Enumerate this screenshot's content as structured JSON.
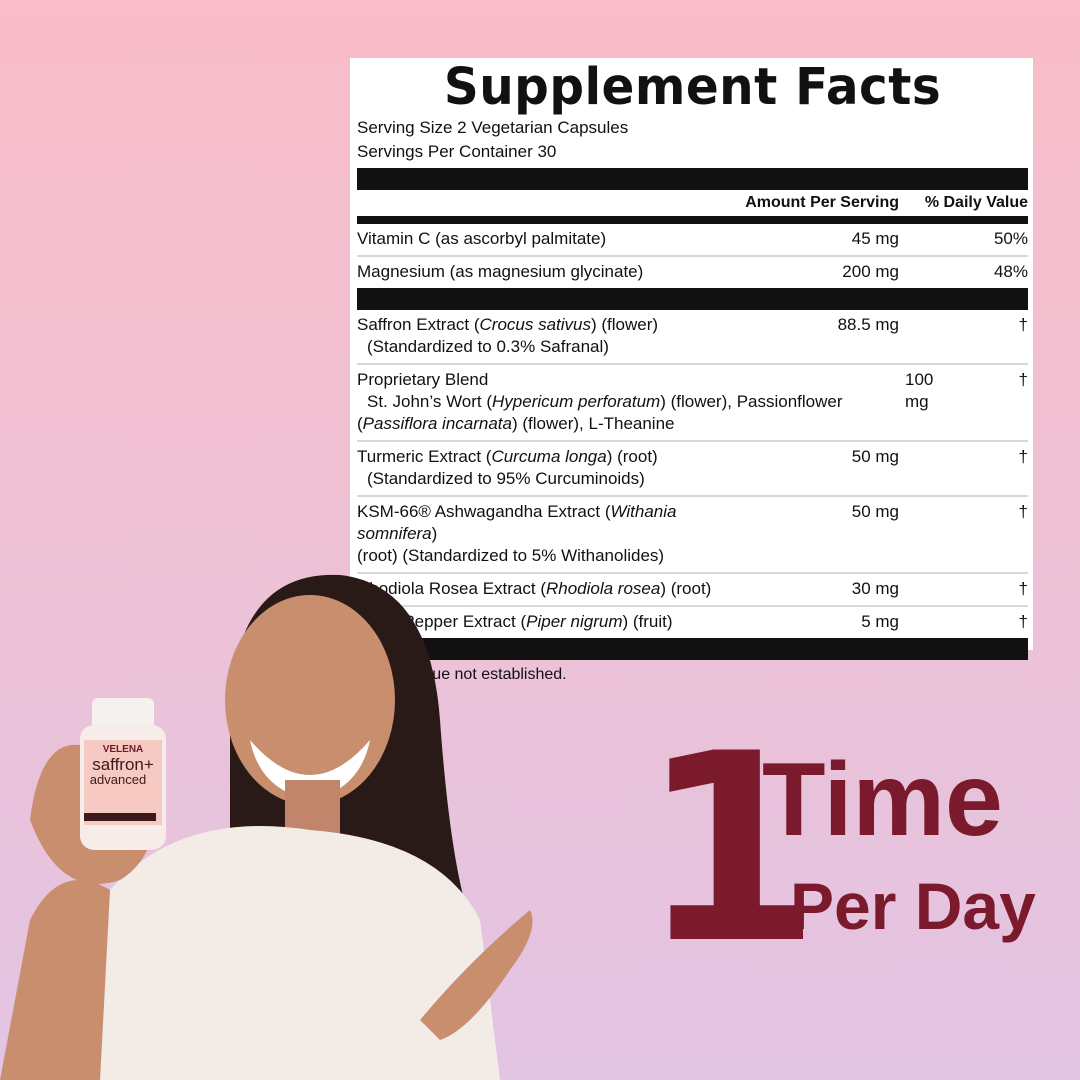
{
  "label": {
    "title": "Supplement Facts",
    "serving_size": "Serving Size 2 Vegetarian Capsules",
    "servings_per_container": "Servings Per Container 30",
    "col_amount": "Amount Per Serving",
    "col_dv": "% Daily Value",
    "vitamins": [
      {
        "name": "Vitamin C (as ascorbyl palmitate)",
        "amount": "45 mg",
        "dv": "50%"
      },
      {
        "name": "Magnesium (as magnesium glycinate)",
        "amount": "200 mg",
        "dv": "48%"
      }
    ],
    "ingredients": [
      {
        "a": "Saffron Extract (",
        "b": "Crocus sativus",
        "c": ") (flower)",
        "sub": "(Standardized to 0.3% Safranal)",
        "amount": "88.5 mg",
        "dv": "†"
      },
      {
        "a": "Proprietary Blend",
        "amount": "100 mg",
        "dv": "†",
        "sub1a": "St. John’s Wort (",
        "sub1b": "Hypericum perforatum",
        "sub1c": ") (flower), Passionflower",
        "sub2a": "(",
        "sub2b": "Passiflora incarnata",
        "sub2c": ") (flower), L-Theanine"
      },
      {
        "a": "Turmeric Extract (",
        "b": "Curcuma longa",
        "c": ") (root)",
        "sub": "(Standardized to 95% Curcuminoids)",
        "amount": "50 mg",
        "dv": "†"
      },
      {
        "a": "KSM-66® Ashwagandha Extract (",
        "b": "Withania somnifera",
        "c": ")",
        "sub": "(root) (Standardized to 5% Withanolides)",
        "amount": "50 mg",
        "dv": "†"
      },
      {
        "a": "Rhodiola Rosea Extract (",
        "b": "Rhodiola rosea",
        "c": ") (root)",
        "amount": "30 mg",
        "dv": "†"
      },
      {
        "a": "Black Pepper Extract (",
        "b": "Piper nigrum",
        "c": ") (fruit)",
        "amount": "5 mg",
        "dv": "†"
      }
    ],
    "footnote": "† Daily Value not established."
  },
  "bottle": {
    "brand": "VELENA",
    "name": "saffron+",
    "sub": "advanced"
  },
  "headline": {
    "number": "1",
    "line1": "Time",
    "line2": "Per Day"
  },
  "colors": {
    "accent": "#7a1a2c",
    "bg_top": "#f9bcc8",
    "bg_bottom": "#e2c4e3"
  }
}
